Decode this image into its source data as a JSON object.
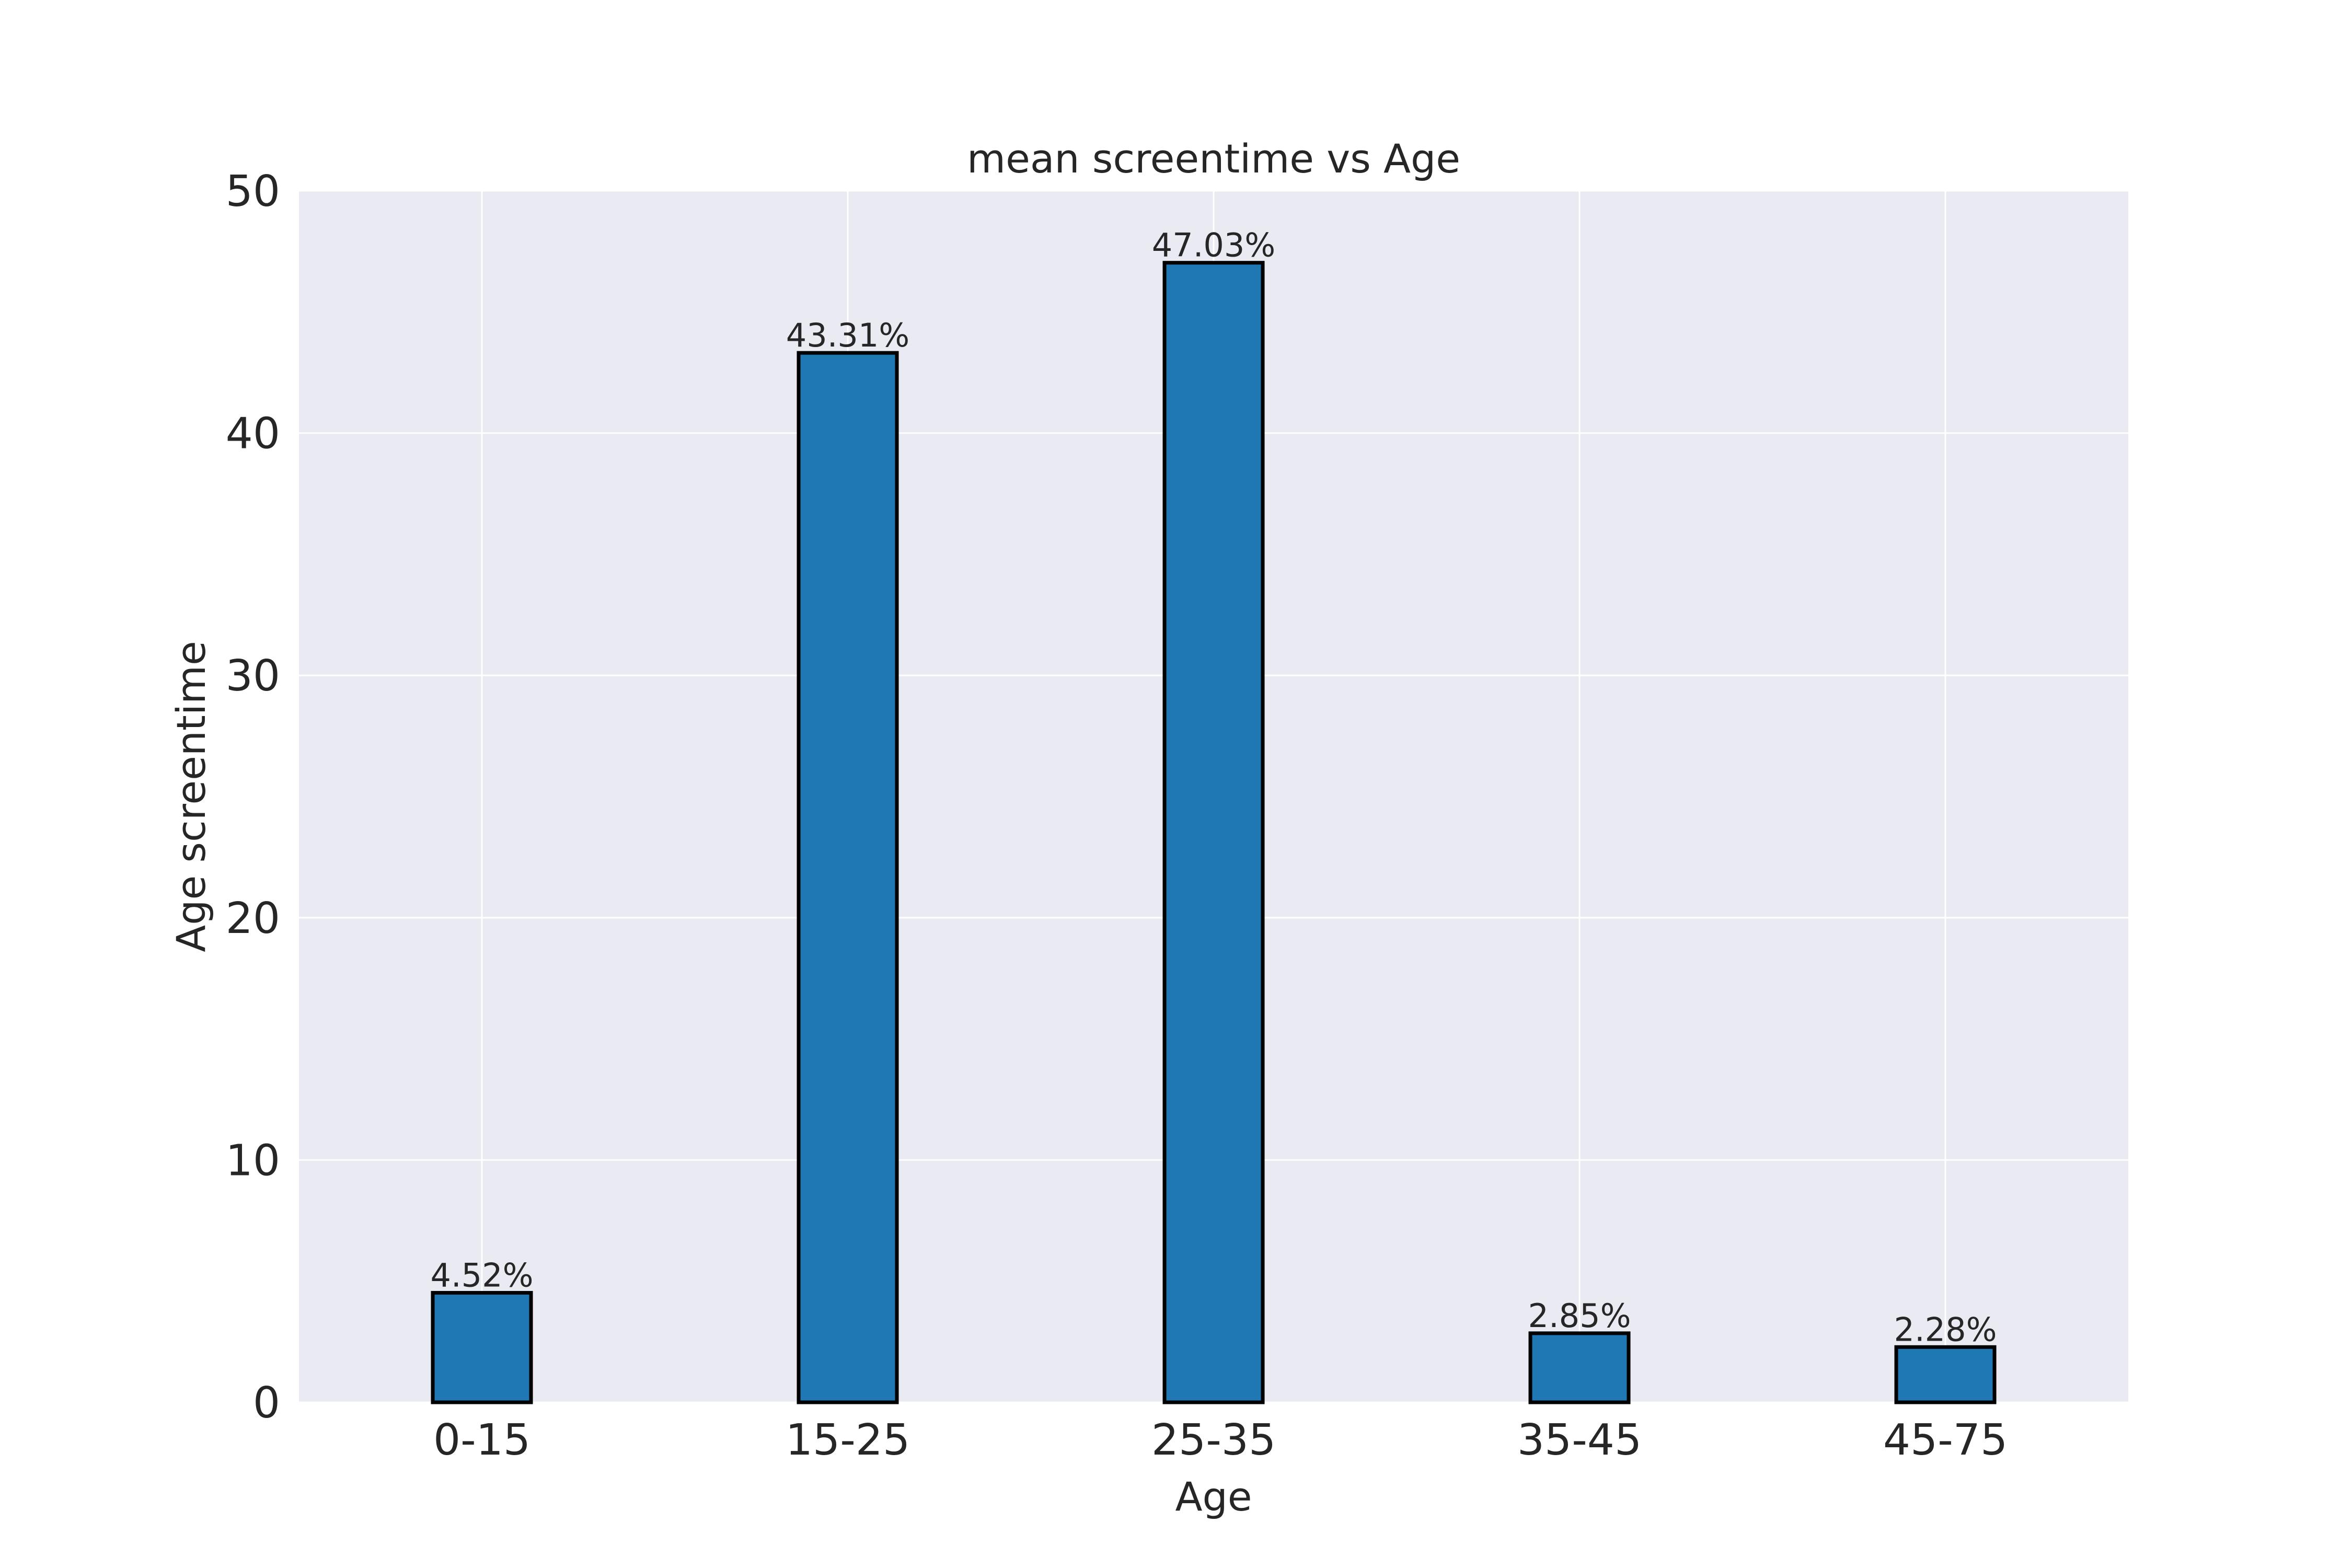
{
  "chart_data": {
    "type": "bar",
    "title": "mean screentime vs Age",
    "xlabel": "Age",
    "ylabel": "Age screentime",
    "categories": [
      "0-15",
      "15-25",
      "25-35",
      "35-45",
      "45-75"
    ],
    "values": [
      4.52,
      43.31,
      47.03,
      2.85,
      2.28
    ],
    "data_labels": [
      "4.52%",
      "43.31%",
      "47.03%",
      "2.85%",
      "2.28%"
    ],
    "ylim": [
      0,
      50
    ],
    "yticks": [
      0,
      10,
      20,
      30,
      40,
      50
    ],
    "grid": true,
    "legend": "none",
    "colors": {
      "bar": "#1f77b4",
      "bar_edge": "#000000",
      "plot_background": "#eaeaf2",
      "grid": "#ffffff",
      "text": "#262626"
    }
  }
}
